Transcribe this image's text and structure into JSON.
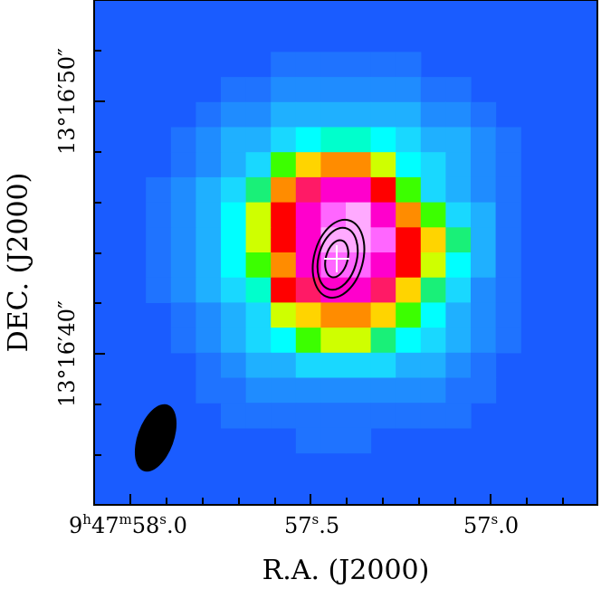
{
  "figure": {
    "x_axis_title": "R.A. (J2000)",
    "y_axis_title": "DEC. (J2000)",
    "x_ticks": [
      {
        "h": "9",
        "h_unit": "h",
        "m": "47",
        "m_unit": "m",
        "s_int": "58",
        "s_unit": "s",
        "s_frac": ".0"
      },
      {
        "h": "",
        "h_unit": "",
        "m": "",
        "m_unit": "",
        "s_int": "57",
        "s_unit": "s",
        "s_frac": ".5"
      },
      {
        "h": "",
        "h_unit": "",
        "m": "",
        "m_unit": "",
        "s_int": "57",
        "s_unit": "s",
        "s_frac": ".0"
      }
    ],
    "y_ticks": [
      {
        "label": "13°16′40″"
      },
      {
        "label": "13°16′50″"
      }
    ],
    "colors": {
      "background": "#1a5cff",
      "beam": "#000000",
      "contour": "#000000",
      "marker": "#ffffff"
    },
    "colormap": [
      "#1a5cff",
      "#1f73ff",
      "#1f8cff",
      "#1fb0ff",
      "#19d8ff",
      "#00ffff",
      "#00ffcc",
      "#19f078",
      "#3cff00",
      "#cfff00",
      "#ffd400",
      "#ff8c00",
      "#ff0000",
      "#ff1a66",
      "#ff00cc",
      "#ff66ff",
      "#ffaaff"
    ],
    "image_grid": [
      [
        0,
        0,
        0,
        0,
        0,
        0,
        0,
        0,
        0,
        0,
        0,
        0,
        0,
        0,
        0,
        0,
        0,
        0,
        0,
        0
      ],
      [
        0,
        0,
        0,
        0,
        0,
        0,
        0,
        0,
        0,
        0,
        0,
        0,
        0,
        0,
        0,
        0,
        0,
        0,
        0,
        0
      ],
      [
        0,
        0,
        0,
        0,
        0,
        0,
        0,
        1,
        1,
        1,
        1,
        1,
        1,
        0,
        0,
        0,
        0,
        0,
        0,
        0
      ],
      [
        0,
        0,
        0,
        0,
        0,
        1,
        1,
        2,
        2,
        2,
        2,
        2,
        2,
        1,
        1,
        0,
        0,
        0,
        0,
        0
      ],
      [
        0,
        0,
        0,
        0,
        1,
        2,
        2,
        3,
        3,
        3,
        3,
        3,
        3,
        2,
        2,
        1,
        0,
        0,
        0,
        0
      ],
      [
        0,
        0,
        0,
        1,
        2,
        3,
        3,
        4,
        5,
        6,
        6,
        5,
        4,
        3,
        3,
        2,
        1,
        0,
        0,
        0
      ],
      [
        0,
        0,
        0,
        1,
        2,
        3,
        4,
        8,
        10,
        11,
        11,
        9,
        5,
        4,
        3,
        2,
        1,
        0,
        0,
        0
      ],
      [
        0,
        0,
        1,
        2,
        3,
        4,
        7,
        11,
        13,
        14,
        14,
        12,
        8,
        4,
        3,
        2,
        1,
        0,
        0,
        0
      ],
      [
        0,
        0,
        1,
        2,
        3,
        5,
        9,
        12,
        14,
        15,
        16,
        14,
        11,
        8,
        4,
        3,
        1,
        0,
        0,
        0
      ],
      [
        0,
        0,
        1,
        2,
        3,
        5,
        9,
        12,
        14,
        16,
        16,
        15,
        12,
        10,
        7,
        3,
        1,
        0,
        0,
        0
      ],
      [
        0,
        0,
        1,
        2,
        3,
        5,
        8,
        11,
        14,
        15,
        15,
        14,
        12,
        9,
        5,
        3,
        1,
        0,
        0,
        0
      ],
      [
        0,
        0,
        1,
        2,
        3,
        4,
        6,
        12,
        13,
        14,
        14,
        13,
        10,
        7,
        4,
        2,
        1,
        0,
        0,
        0
      ],
      [
        0,
        0,
        0,
        1,
        2,
        3,
        4,
        9,
        10,
        11,
        11,
        10,
        8,
        5,
        3,
        2,
        1,
        0,
        0,
        0
      ],
      [
        0,
        0,
        0,
        1,
        2,
        3,
        4,
        5,
        8,
        9,
        9,
        7,
        5,
        4,
        3,
        2,
        1,
        0,
        0,
        0
      ],
      [
        0,
        0,
        0,
        0,
        1,
        2,
        3,
        3,
        4,
        4,
        4,
        4,
        3,
        3,
        2,
        1,
        0,
        0,
        0,
        0
      ],
      [
        0,
        0,
        0,
        0,
        1,
        1,
        2,
        2,
        2,
        2,
        2,
        2,
        2,
        2,
        1,
        1,
        0,
        0,
        0,
        0
      ],
      [
        0,
        0,
        0,
        0,
        0,
        1,
        1,
        1,
        1,
        1,
        1,
        1,
        1,
        1,
        1,
        0,
        0,
        0,
        0,
        0
      ],
      [
        0,
        0,
        0,
        0,
        0,
        0,
        0,
        0,
        1,
        1,
        1,
        0,
        0,
        0,
        0,
        0,
        0,
        0,
        0,
        0
      ],
      [
        0,
        0,
        0,
        0,
        0,
        0,
        0,
        0,
        0,
        0,
        0,
        0,
        0,
        0,
        0,
        0,
        0,
        0,
        0,
        0
      ],
      [
        0,
        0,
        0,
        0,
        0,
        0,
        0,
        0,
        0,
        0,
        0,
        0,
        0,
        0,
        0,
        0,
        0,
        0,
        0,
        0
      ]
    ]
  }
}
